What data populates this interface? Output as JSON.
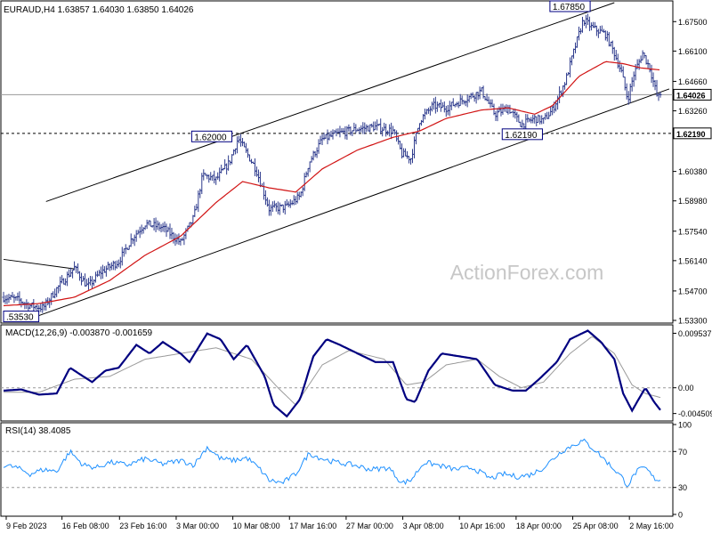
{
  "chart_data": {
    "type": "candlestick",
    "symbol_header": "EURAUD,H4  1.63857 1.64030 1.63850 1.64026",
    "watermark": "ActionForex.com",
    "price_panel": {
      "ylim": [
        1.533,
        1.684
      ],
      "y_ticks": [
        "1.67500",
        "1.66100",
        "1.64660",
        "1.63260",
        "1.60380",
        "1.58980",
        "1.57540",
        "1.56140",
        "1.54700",
        "1.53300"
      ],
      "current_price": "1.64026",
      "support_level": "1.62190",
      "annotations": [
        {
          "text": "1.67850",
          "bar": 650,
          "price": 1.6785
        },
        {
          "text": "1.62000",
          "bar": 262,
          "price": 1.62
        },
        {
          "text": "1.62190",
          "bar": 580,
          "price": 1.6219
        },
        {
          "text": ".53530",
          "bar": 22,
          "price": 1.5353
        }
      ],
      "channel_lines": [
        {
          "from": [
            48,
            1.5895
          ],
          "to": [
            690,
            1.684
          ]
        },
        {
          "from": [
            40,
            1.5353
          ],
          "to": [
            752,
            1.643
          ]
        },
        {
          "from": [
            0,
            1.562
          ],
          "to": [
            80,
            1.5575
          ]
        }
      ],
      "trend_anchors": [
        [
          0,
          1.544
        ],
        [
          15,
          1.543
        ],
        [
          30,
          1.54
        ],
        [
          45,
          1.539
        ],
        [
          60,
          1.548
        ],
        [
          80,
          1.558
        ],
        [
          95,
          1.549
        ],
        [
          110,
          1.556
        ],
        [
          130,
          1.561
        ],
        [
          145,
          1.572
        ],
        [
          160,
          1.579
        ],
        [
          180,
          1.577
        ],
        [
          200,
          1.57
        ],
        [
          215,
          1.582
        ],
        [
          225,
          1.602
        ],
        [
          240,
          1.6
        ],
        [
          255,
          1.608
        ],
        [
          265,
          1.6195
        ],
        [
          285,
          1.605
        ],
        [
          300,
          1.586
        ],
        [
          320,
          1.587
        ],
        [
          335,
          1.592
        ],
        [
          345,
          1.608
        ],
        [
          360,
          1.619
        ],
        [
          380,
          1.622
        ],
        [
          400,
          1.624
        ],
        [
          420,
          1.625
        ],
        [
          440,
          1.623
        ],
        [
          450,
          1.612
        ],
        [
          460,
          1.61
        ],
        [
          470,
          1.628
        ],
        [
          485,
          1.635
        ],
        [
          500,
          1.634
        ],
        [
          520,
          1.638
        ],
        [
          540,
          1.642
        ],
        [
          555,
          1.631
        ],
        [
          570,
          1.634
        ],
        [
          585,
          1.626
        ],
        [
          600,
          1.629
        ],
        [
          610,
          1.628
        ],
        [
          620,
          1.633
        ],
        [
          635,
          1.647
        ],
        [
          645,
          1.662
        ],
        [
          655,
          1.676
        ],
        [
          665,
          1.672
        ],
        [
          680,
          1.669
        ],
        [
          690,
          1.66
        ],
        [
          698,
          1.651
        ],
        [
          705,
          1.638
        ],
        [
          712,
          1.65
        ],
        [
          722,
          1.66
        ],
        [
          730,
          1.653
        ],
        [
          738,
          1.64
        ],
        [
          742,
          1.6385
        ]
      ],
      "ema_anchors": [
        [
          0,
          1.54
        ],
        [
          40,
          1.541
        ],
        [
          80,
          1.544
        ],
        [
          120,
          1.552
        ],
        [
          160,
          1.564
        ],
        [
          200,
          1.573
        ],
        [
          240,
          1.589
        ],
        [
          270,
          1.599
        ],
        [
          300,
          1.596
        ],
        [
          330,
          1.594
        ],
        [
          360,
          1.605
        ],
        [
          400,
          1.614
        ],
        [
          440,
          1.62
        ],
        [
          470,
          1.623
        ],
        [
          500,
          1.629
        ],
        [
          540,
          1.633
        ],
        [
          570,
          1.634
        ],
        [
          600,
          1.631
        ],
        [
          620,
          1.635
        ],
        [
          650,
          1.649
        ],
        [
          680,
          1.656
        ],
        [
          700,
          1.655
        ],
        [
          720,
          1.653
        ],
        [
          742,
          1.652
        ]
      ]
    },
    "macd_panel": {
      "label": "MACD(12,26,9) -0.003870 -0.001659",
      "ylim": [
        -0.0055,
        0.0107
      ],
      "y_ticks": [
        "0.009537",
        "0.00",
        "-0.004509"
      ],
      "zero_level": 0.0,
      "macd_anchors": [
        [
          0,
          -0.0005
        ],
        [
          20,
          -0.0003
        ],
        [
          40,
          -0.0012
        ],
        [
          60,
          -0.001
        ],
        [
          75,
          0.0035
        ],
        [
          85,
          0.0025
        ],
        [
          100,
          0.001
        ],
        [
          115,
          0.003
        ],
        [
          130,
          0.0035
        ],
        [
          150,
          0.0075
        ],
        [
          165,
          0.006
        ],
        [
          180,
          0.008
        ],
        [
          200,
          0.006
        ],
        [
          210,
          0.0045
        ],
        [
          230,
          0.0095
        ],
        [
          245,
          0.0085
        ],
        [
          260,
          0.005
        ],
        [
          275,
          0.0075
        ],
        [
          295,
          0.002
        ],
        [
          305,
          -0.003
        ],
        [
          320,
          -0.005
        ],
        [
          335,
          -0.002
        ],
        [
          350,
          0.0055
        ],
        [
          365,
          0.0085
        ],
        [
          380,
          0.0075
        ],
        [
          400,
          0.006
        ],
        [
          420,
          0.0045
        ],
        [
          440,
          0.0045
        ],
        [
          455,
          -0.002
        ],
        [
          465,
          -0.0025
        ],
        [
          480,
          0.003
        ],
        [
          495,
          0.006
        ],
        [
          515,
          0.0055
        ],
        [
          535,
          0.005
        ],
        [
          555,
          0.0005
        ],
        [
          575,
          -0.0005
        ],
        [
          590,
          -0.0005
        ],
        [
          605,
          0.0015
        ],
        [
          625,
          0.0045
        ],
        [
          640,
          0.0085
        ],
        [
          660,
          0.01
        ],
        [
          675,
          0.008
        ],
        [
          690,
          0.005
        ],
        [
          700,
          -0.001
        ],
        [
          710,
          -0.004
        ],
        [
          725,
          0.0
        ],
        [
          735,
          -0.0025
        ],
        [
          742,
          -0.0039
        ]
      ],
      "signal_anchors": [
        [
          0,
          -0.0008
        ],
        [
          40,
          -0.0008
        ],
        [
          80,
          0.0015
        ],
        [
          120,
          0.002
        ],
        [
          160,
          0.005
        ],
        [
          200,
          0.006
        ],
        [
          240,
          0.007
        ],
        [
          280,
          0.005
        ],
        [
          310,
          0.0
        ],
        [
          330,
          -0.003
        ],
        [
          360,
          0.004
        ],
        [
          390,
          0.0065
        ],
        [
          430,
          0.005
        ],
        [
          455,
          0.0005
        ],
        [
          475,
          0.001
        ],
        [
          500,
          0.004
        ],
        [
          535,
          0.005
        ],
        [
          560,
          0.002
        ],
        [
          585,
          0.0
        ],
        [
          610,
          0.001
        ],
        [
          640,
          0.006
        ],
        [
          665,
          0.009
        ],
        [
          690,
          0.006
        ],
        [
          710,
          0.0005
        ],
        [
          725,
          -0.001
        ],
        [
          742,
          -0.0017
        ]
      ]
    },
    "rsi_panel": {
      "label": "RSI(14) 38.4085",
      "ylim": [
        0,
        100
      ],
      "y_ticks": [
        "100",
        "70",
        "30",
        "0"
      ],
      "levels": [
        70,
        30
      ],
      "rsi_anchors": [
        [
          0,
          55
        ],
        [
          15,
          52
        ],
        [
          30,
          45
        ],
        [
          45,
          50
        ],
        [
          60,
          48
        ],
        [
          75,
          70
        ],
        [
          90,
          55
        ],
        [
          105,
          52
        ],
        [
          120,
          58
        ],
        [
          140,
          55
        ],
        [
          160,
          62
        ],
        [
          180,
          56
        ],
        [
          200,
          60
        ],
        [
          215,
          55
        ],
        [
          230,
          75
        ],
        [
          245,
          62
        ],
        [
          260,
          60
        ],
        [
          275,
          63
        ],
        [
          290,
          50
        ],
        [
          300,
          38
        ],
        [
          315,
          35
        ],
        [
          330,
          45
        ],
        [
          345,
          68
        ],
        [
          360,
          62
        ],
        [
          375,
          58
        ],
        [
          395,
          55
        ],
        [
          415,
          50
        ],
        [
          435,
          52
        ],
        [
          450,
          35
        ],
        [
          460,
          38
        ],
        [
          475,
          58
        ],
        [
          490,
          55
        ],
        [
          510,
          50
        ],
        [
          530,
          52
        ],
        [
          550,
          40
        ],
        [
          565,
          45
        ],
        [
          580,
          42
        ],
        [
          595,
          44
        ],
        [
          610,
          52
        ],
        [
          630,
          70
        ],
        [
          645,
          78
        ],
        [
          655,
          82
        ],
        [
          670,
          70
        ],
        [
          685,
          55
        ],
        [
          698,
          42
        ],
        [
          705,
          32
        ],
        [
          715,
          48
        ],
        [
          725,
          52
        ],
        [
          735,
          40
        ],
        [
          742,
          38
        ]
      ]
    },
    "x_axis": {
      "labels": [
        {
          "bar": 3,
          "text": "9 Feb 2023"
        },
        {
          "bar": 66,
          "text": "16 Feb 08:00"
        },
        {
          "bar": 131,
          "text": "23 Feb 16:00"
        },
        {
          "bar": 195,
          "text": "3 Mar 00:00"
        },
        {
          "bar": 259,
          "text": "10 Mar 08:00"
        },
        {
          "bar": 323,
          "text": "17 Mar 16:00"
        },
        {
          "bar": 387,
          "text": "27 Mar 00:00"
        },
        {
          "bar": 451,
          "text": "3 Apr 08:00"
        },
        {
          "bar": 515,
          "text": "10 Apr 16:00"
        },
        {
          "bar": 579,
          "text": "18 Apr 00:00"
        },
        {
          "bar": 643,
          "text": "25 Apr 08:00"
        },
        {
          "bar": 707,
          "text": "2 May 16:00"
        }
      ]
    },
    "colors": {
      "price_bars": "#2d3a8c",
      "ema": "#d11414",
      "macd": "#000080",
      "signal": "#9a9a9a",
      "rsi": "#1e90ff",
      "support_line": "#000000",
      "channel": "#000000"
    }
  }
}
